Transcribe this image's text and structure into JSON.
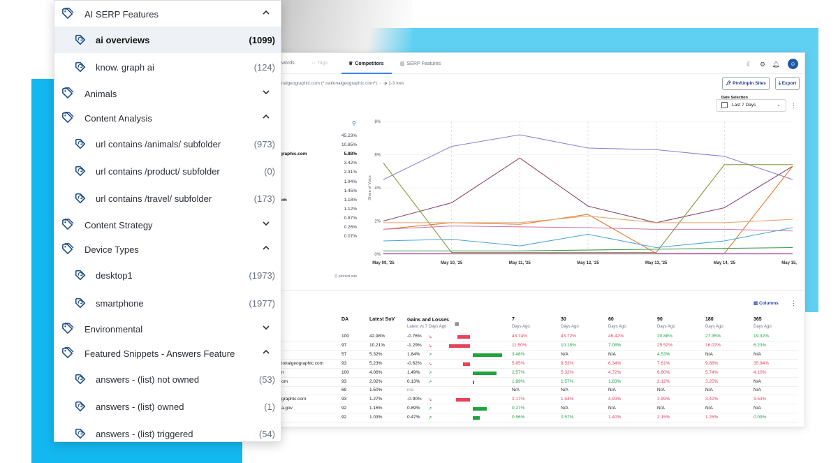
{
  "app": {
    "tabs": [
      {
        "label": "words"
      },
      {
        "label": "Tags"
      },
      {
        "label": "Competitors"
      },
      {
        "label": "SERP Features"
      }
    ],
    "breadcrumb": "nalgeographic.com (*.nationalgeographic.com*)",
    "breadcrumb_kws": "1-3 kws",
    "pin_button": "Pin/Unpin Sites",
    "export_button": "Export",
    "date_label": "Date Selection",
    "date_value": "Last 7 Days",
    "avatar_initial": "☺",
    "pinned_note": "pinned site",
    "columns_button": "Columns",
    "legend": {
      "values": [
        "45.23%",
        "10.85%",
        "5.88%",
        "3.42%",
        "2.31%",
        "1.94%",
        "1.45%",
        "1.18%",
        "1.12%",
        "0.87%",
        "0.26%",
        "0.07%"
      ],
      "bold_index": 2,
      "sites": [
        {
          "label": "graphic.com",
          "row": 2
        },
        {
          "label": "om",
          "row": 7
        }
      ]
    }
  },
  "chart_data": {
    "type": "line",
    "x": [
      "May 09, '25",
      "May 10, '25",
      "May 11, '25",
      "May 12, '25",
      "May 13, '25",
      "May 14, '25",
      "May 15, '25"
    ],
    "yticks": [
      "0%",
      "2%",
      "4%",
      "6%",
      "8%"
    ],
    "ylim": [
      0,
      8
    ],
    "ylabel": "Share of Voice",
    "series": [
      {
        "color": "#8b7fd6",
        "values": [
          4.5,
          6.5,
          7.2,
          6.4,
          6.3,
          5.9,
          4.5
        ]
      },
      {
        "color": "#8b4a6b",
        "values": [
          2.0,
          3.1,
          5.8,
          2.9,
          1.9,
          2.8,
          5.3
        ]
      },
      {
        "color": "#7f9a3a",
        "values": [
          5.5,
          0.1,
          0.1,
          0.1,
          0.1,
          5.4,
          5.4
        ]
      },
      {
        "color": "#e07a2f",
        "values": [
          1.5,
          1.9,
          1.8,
          2.4,
          0.05,
          0.05,
          5.3
        ]
      },
      {
        "color": "#d27aa8",
        "values": [
          1.5,
          1.7,
          1.65,
          1.6,
          1.5,
          1.5,
          1.4
        ]
      },
      {
        "color": "#e8a26a",
        "values": [
          1.9,
          1.9,
          1.9,
          2.3,
          1.9,
          1.9,
          2.1
        ]
      },
      {
        "color": "#4aa3d8",
        "values": [
          0.8,
          0.9,
          0.5,
          1.2,
          0.4,
          0.8,
          1.6
        ]
      },
      {
        "color": "#3a9a4a",
        "values": [
          0.2,
          0.2,
          0.2,
          0.25,
          0.3,
          0.35,
          0.4
        ]
      },
      {
        "color": "#c23ab0",
        "values": [
          0.05,
          0.05,
          0.05,
          0.05,
          0.05,
          0.05,
          0.05
        ]
      }
    ]
  },
  "table": {
    "headers": [
      "DA",
      "Latest SoV",
      "Gains and Losses",
      "7",
      "30",
      "60",
      "90",
      "180",
      "365"
    ],
    "subheaders": {
      "gains": "Latest vs 7 Days Ago",
      "days": "Days Ago"
    },
    "rows": [
      {
        "site": "",
        "da": "100",
        "sov": "42.98%",
        "gl": "-0.76%",
        "dir": "down",
        "bar": -18,
        "d7": "43.74%",
        "d30": "43.72%",
        "d60": "46.42%",
        "d90": "20.88%",
        "d180": "27.35%",
        "d365": "19.32%",
        "c7": "red",
        "c30": "red",
        "c60": "red",
        "c90": "green",
        "c180": "green",
        "c365": "green"
      },
      {
        "site": "",
        "da": "97",
        "sov": "10.21%",
        "gl": "-1.29%",
        "dir": "down",
        "bar": -30,
        "d7": "11.50%",
        "d30": "10.18%",
        "d60": "7.08%",
        "d90": "25.52%",
        "d180": "16.02%",
        "d365": "6.23%",
        "c7": "red",
        "c30": "green",
        "c60": "green",
        "c90": "red",
        "c180": "red",
        "c365": "green"
      },
      {
        "site": "",
        "da": "57",
        "sov": "5.32%",
        "gl": "1.84%",
        "dir": "up",
        "bar": 42,
        "d7": "3.48%",
        "d30": "N/A",
        "d60": "N/A",
        "d90": "4.53%",
        "d180": "N/A",
        "d365": "N/A",
        "c7": "green",
        "c30": "",
        "c60": "",
        "c90": "green",
        "c180": "",
        "c365": ""
      },
      {
        "site": "ionalgeographic.com",
        "da": "93",
        "sov": "5.23%",
        "gl": "-0.62%",
        "dir": "down",
        "bar": -10,
        "d7": "5.85%",
        "d30": "9.53%",
        "d60": "6.34%",
        "d90": "7.61%",
        "d180": "9.88%",
        "d365": "35.94%",
        "c7": "red",
        "c30": "red",
        "c60": "red",
        "c90": "red",
        "c180": "red",
        "c365": "red"
      },
      {
        "site": "n",
        "da": "100",
        "sov": "4.06%",
        "gl": "1.49%",
        "dir": "up",
        "bar": 34,
        "d7": "2.57%",
        "d30": "5.32%",
        "d60": "4.72%",
        "d90": "6.60%",
        "d180": "5.74%",
        "d365": "4.10%",
        "c7": "green",
        "c30": "red",
        "c60": "red",
        "c90": "red",
        "c180": "red",
        "c365": "red"
      },
      {
        "site": "om",
        "da": "93",
        "sov": "2.02%",
        "gl": "0.13%",
        "dir": "up",
        "bar": 2,
        "d7": "1.89%",
        "d30": "1.57%",
        "d60": "1.83%",
        "d90": "2.12%",
        "d180": "3.25%",
        "d365": "N/A",
        "c7": "green",
        "c30": "green",
        "c60": "green",
        "c90": "red",
        "c180": "red",
        "c365": ""
      },
      {
        "site": "",
        "da": "69",
        "sov": "1.50%",
        "gl": "n/a",
        "dir": "",
        "bar": 0,
        "d7": "N/A",
        "d30": "N/A",
        "d60": "N/A",
        "d90": "N/A",
        "d180": "N/A",
        "d365": "N/A",
        "c7": "",
        "c30": "",
        "c60": "",
        "c90": "",
        "c180": "",
        "c365": ""
      },
      {
        "site": "graphic.com",
        "da": "93",
        "sov": "1.27%",
        "gl": "-0.90%",
        "dir": "down",
        "bar": -20,
        "d7": "2.17%",
        "d30": "1.54%",
        "d60": "4.93%",
        "d90": "2.99%",
        "d180": "3.42%",
        "d365": "3.53%",
        "c7": "red",
        "c30": "red",
        "c60": "red",
        "c90": "red",
        "c180": "red",
        "c365": "red"
      },
      {
        "site": "a.gov",
        "da": "92",
        "sov": "1.16%",
        "gl": "0.89%",
        "dir": "up",
        "bar": 20,
        "d7": "0.27%",
        "d30": "N/A",
        "d60": "N/A",
        "d90": "N/A",
        "d180": "N/A",
        "d365": "N/A",
        "c7": "green",
        "c30": "",
        "c60": "",
        "c90": "",
        "c180": "",
        "c365": ""
      },
      {
        "site": "",
        "da": "92",
        "sov": "1.03%",
        "gl": "0.47%",
        "dir": "up",
        "bar": 10,
        "d7": "0.56%",
        "d30": "0.57%",
        "d60": "1.40%",
        "d90": "2.15%",
        "d180": "1.26%",
        "d365": "0.09%",
        "c7": "green",
        "c30": "green",
        "c60": "red",
        "c90": "red",
        "c180": "red",
        "c365": "green"
      }
    ]
  },
  "panel": {
    "items": [
      {
        "type": "group",
        "label": "AI SERP Features",
        "expanded": true
      },
      {
        "type": "sub",
        "label": "ai overviews",
        "count": "(1099)",
        "selected": true
      },
      {
        "type": "sub",
        "label": "know. graph ai",
        "count": "(124)"
      },
      {
        "type": "group",
        "label": "Animals",
        "expanded": false
      },
      {
        "type": "group",
        "label": "Content Analysis",
        "expanded": true
      },
      {
        "type": "sub",
        "label": "url contains /animals/ subfolder",
        "count": "(973)"
      },
      {
        "type": "sub",
        "label": "url contains /product/ subfolder",
        "count": "(0)"
      },
      {
        "type": "sub",
        "label": "url contains /travel/ subfolder",
        "count": "(173)"
      },
      {
        "type": "group",
        "label": "Content Strategy",
        "expanded": false
      },
      {
        "type": "group",
        "label": "Device Types",
        "expanded": true
      },
      {
        "type": "sub",
        "label": "desktop1",
        "count": "(1973)"
      },
      {
        "type": "sub",
        "label": "smartphone",
        "count": "(1977)"
      },
      {
        "type": "group",
        "label": "Environmental",
        "expanded": false
      },
      {
        "type": "group",
        "label": "Featured Snippets - Answers Feature",
        "expanded": true
      },
      {
        "type": "sub",
        "label": "answers - (list) not owned",
        "count": "(53)"
      },
      {
        "type": "sub",
        "label": "answers - (list) owned",
        "count": "(1)"
      },
      {
        "type": "sub",
        "label": "answers - (list) triggered",
        "count": "(54)"
      }
    ]
  },
  "colors": {
    "brand_blue": "#14b8f0",
    "light_blue": "#5fd0f2",
    "accent": "#3b82f6",
    "loss": "#e8415b",
    "gain": "#1ea33a"
  }
}
